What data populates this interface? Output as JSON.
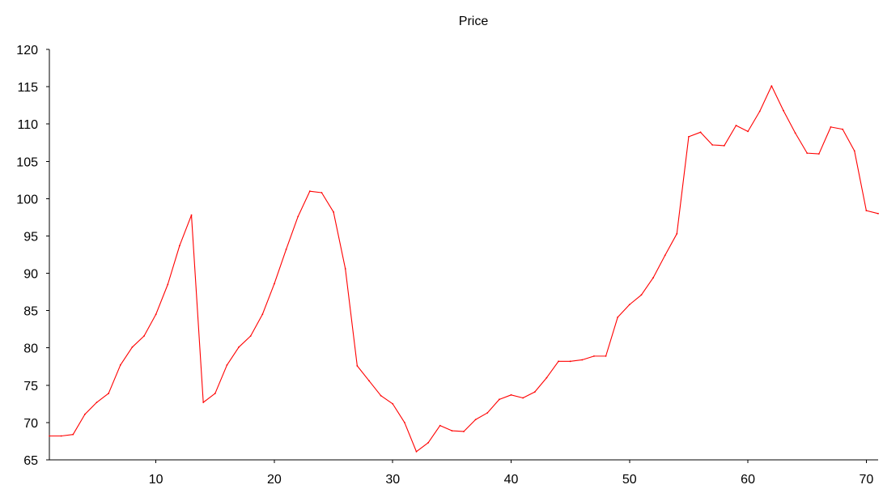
{
  "chart_data": {
    "type": "line",
    "title": "Price",
    "xlabel": "",
    "ylabel": "",
    "xlim": [
      1,
      71
    ],
    "ylim": [
      65,
      120
    ],
    "x_ticks": [
      10,
      20,
      30,
      40,
      50,
      60,
      70
    ],
    "y_ticks": [
      65,
      70,
      75,
      80,
      85,
      90,
      95,
      100,
      105,
      110,
      115,
      120
    ],
    "grid": false,
    "legend": "none",
    "series": [
      {
        "color": "#ff0000",
        "x": [
          1,
          2,
          3,
          4,
          5,
          6,
          7,
          8,
          9,
          10,
          11,
          12,
          13,
          14,
          15,
          16,
          17,
          18,
          19,
          20,
          21,
          22,
          23,
          24,
          25,
          26,
          27,
          28,
          29,
          30,
          31,
          32,
          33,
          34,
          35,
          36,
          37,
          38,
          39,
          40,
          41,
          42,
          43,
          44,
          45,
          46,
          47,
          48,
          49,
          50,
          51,
          52,
          53,
          54,
          55,
          56,
          57,
          58,
          59,
          60,
          61,
          62,
          63,
          64,
          65,
          66,
          67,
          68,
          69,
          70,
          71
        ],
        "values": [
          68.2,
          68.2,
          68.4,
          71.1,
          72.7,
          73.9,
          77.7,
          80.1,
          81.6,
          84.5,
          88.5,
          93.7,
          97.8,
          72.7,
          73.9,
          77.7,
          80.1,
          81.6,
          84.5,
          88.6,
          93.2,
          97.6,
          101.0,
          100.8,
          98.2,
          90.6,
          77.6,
          75.6,
          73.6,
          72.5,
          70.0,
          66.1,
          67.3,
          69.6,
          68.9,
          68.8,
          70.4,
          71.3,
          73.1,
          73.7,
          73.3,
          74.1,
          76.0,
          78.2,
          78.2,
          78.4,
          78.9,
          78.9,
          84.1,
          85.8,
          87.1,
          89.4,
          92.4,
          95.3,
          108.3,
          108.9,
          107.2,
          107.1,
          109.8,
          109.0,
          111.7,
          115.1,
          111.8,
          108.8,
          106.1,
          106.0,
          109.6,
          109.3,
          106.4,
          98.4,
          98.0
        ]
      }
    ]
  }
}
